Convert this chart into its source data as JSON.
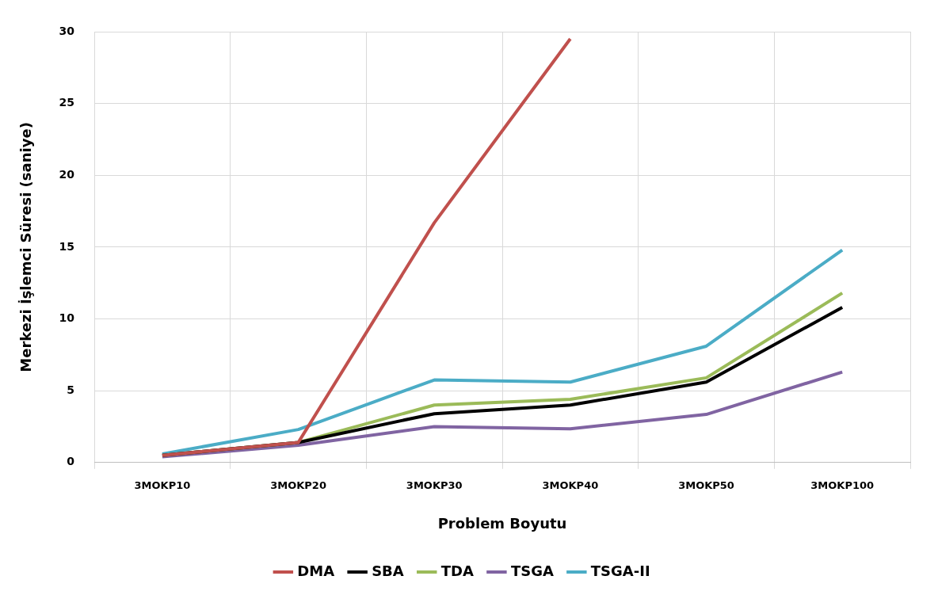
{
  "chart_data": {
    "type": "line",
    "xlabel": "Problem Boyutu",
    "ylabel": "Merkezi İşlemci Süresi (saniye)",
    "categories": [
      "3MOKP10",
      "3MOKP20",
      "3MOKP30",
      "3MOKP40",
      "3MOKP50",
      "3MOKP100"
    ],
    "series": [
      {
        "name": "DMA",
        "color": "#c0504d",
        "values": [
          0.5,
          1.4,
          16.7,
          29.5,
          null,
          null
        ]
      },
      {
        "name": "SBA",
        "color": "#000000",
        "values": [
          0.5,
          1.4,
          3.4,
          4.0,
          5.6,
          10.8
        ]
      },
      {
        "name": "TDA",
        "color": "#9bbb59",
        "values": [
          0.5,
          1.4,
          4.0,
          4.4,
          5.9,
          11.8
        ]
      },
      {
        "name": "TSGA",
        "color": "#8064a2",
        "values": [
          0.4,
          1.2,
          2.5,
          2.35,
          3.35,
          6.3
        ]
      },
      {
        "name": "TSGA-II",
        "color": "#4bacc6",
        "values": [
          0.6,
          2.3,
          5.75,
          5.6,
          8.1,
          14.8
        ]
      }
    ],
    "ylim": [
      0,
      30
    ],
    "yticks": [
      0,
      5,
      10,
      15,
      20,
      25,
      30
    ],
    "grid": true,
    "legend": "bottom",
    "marker": "none",
    "line_style": "solid"
  }
}
